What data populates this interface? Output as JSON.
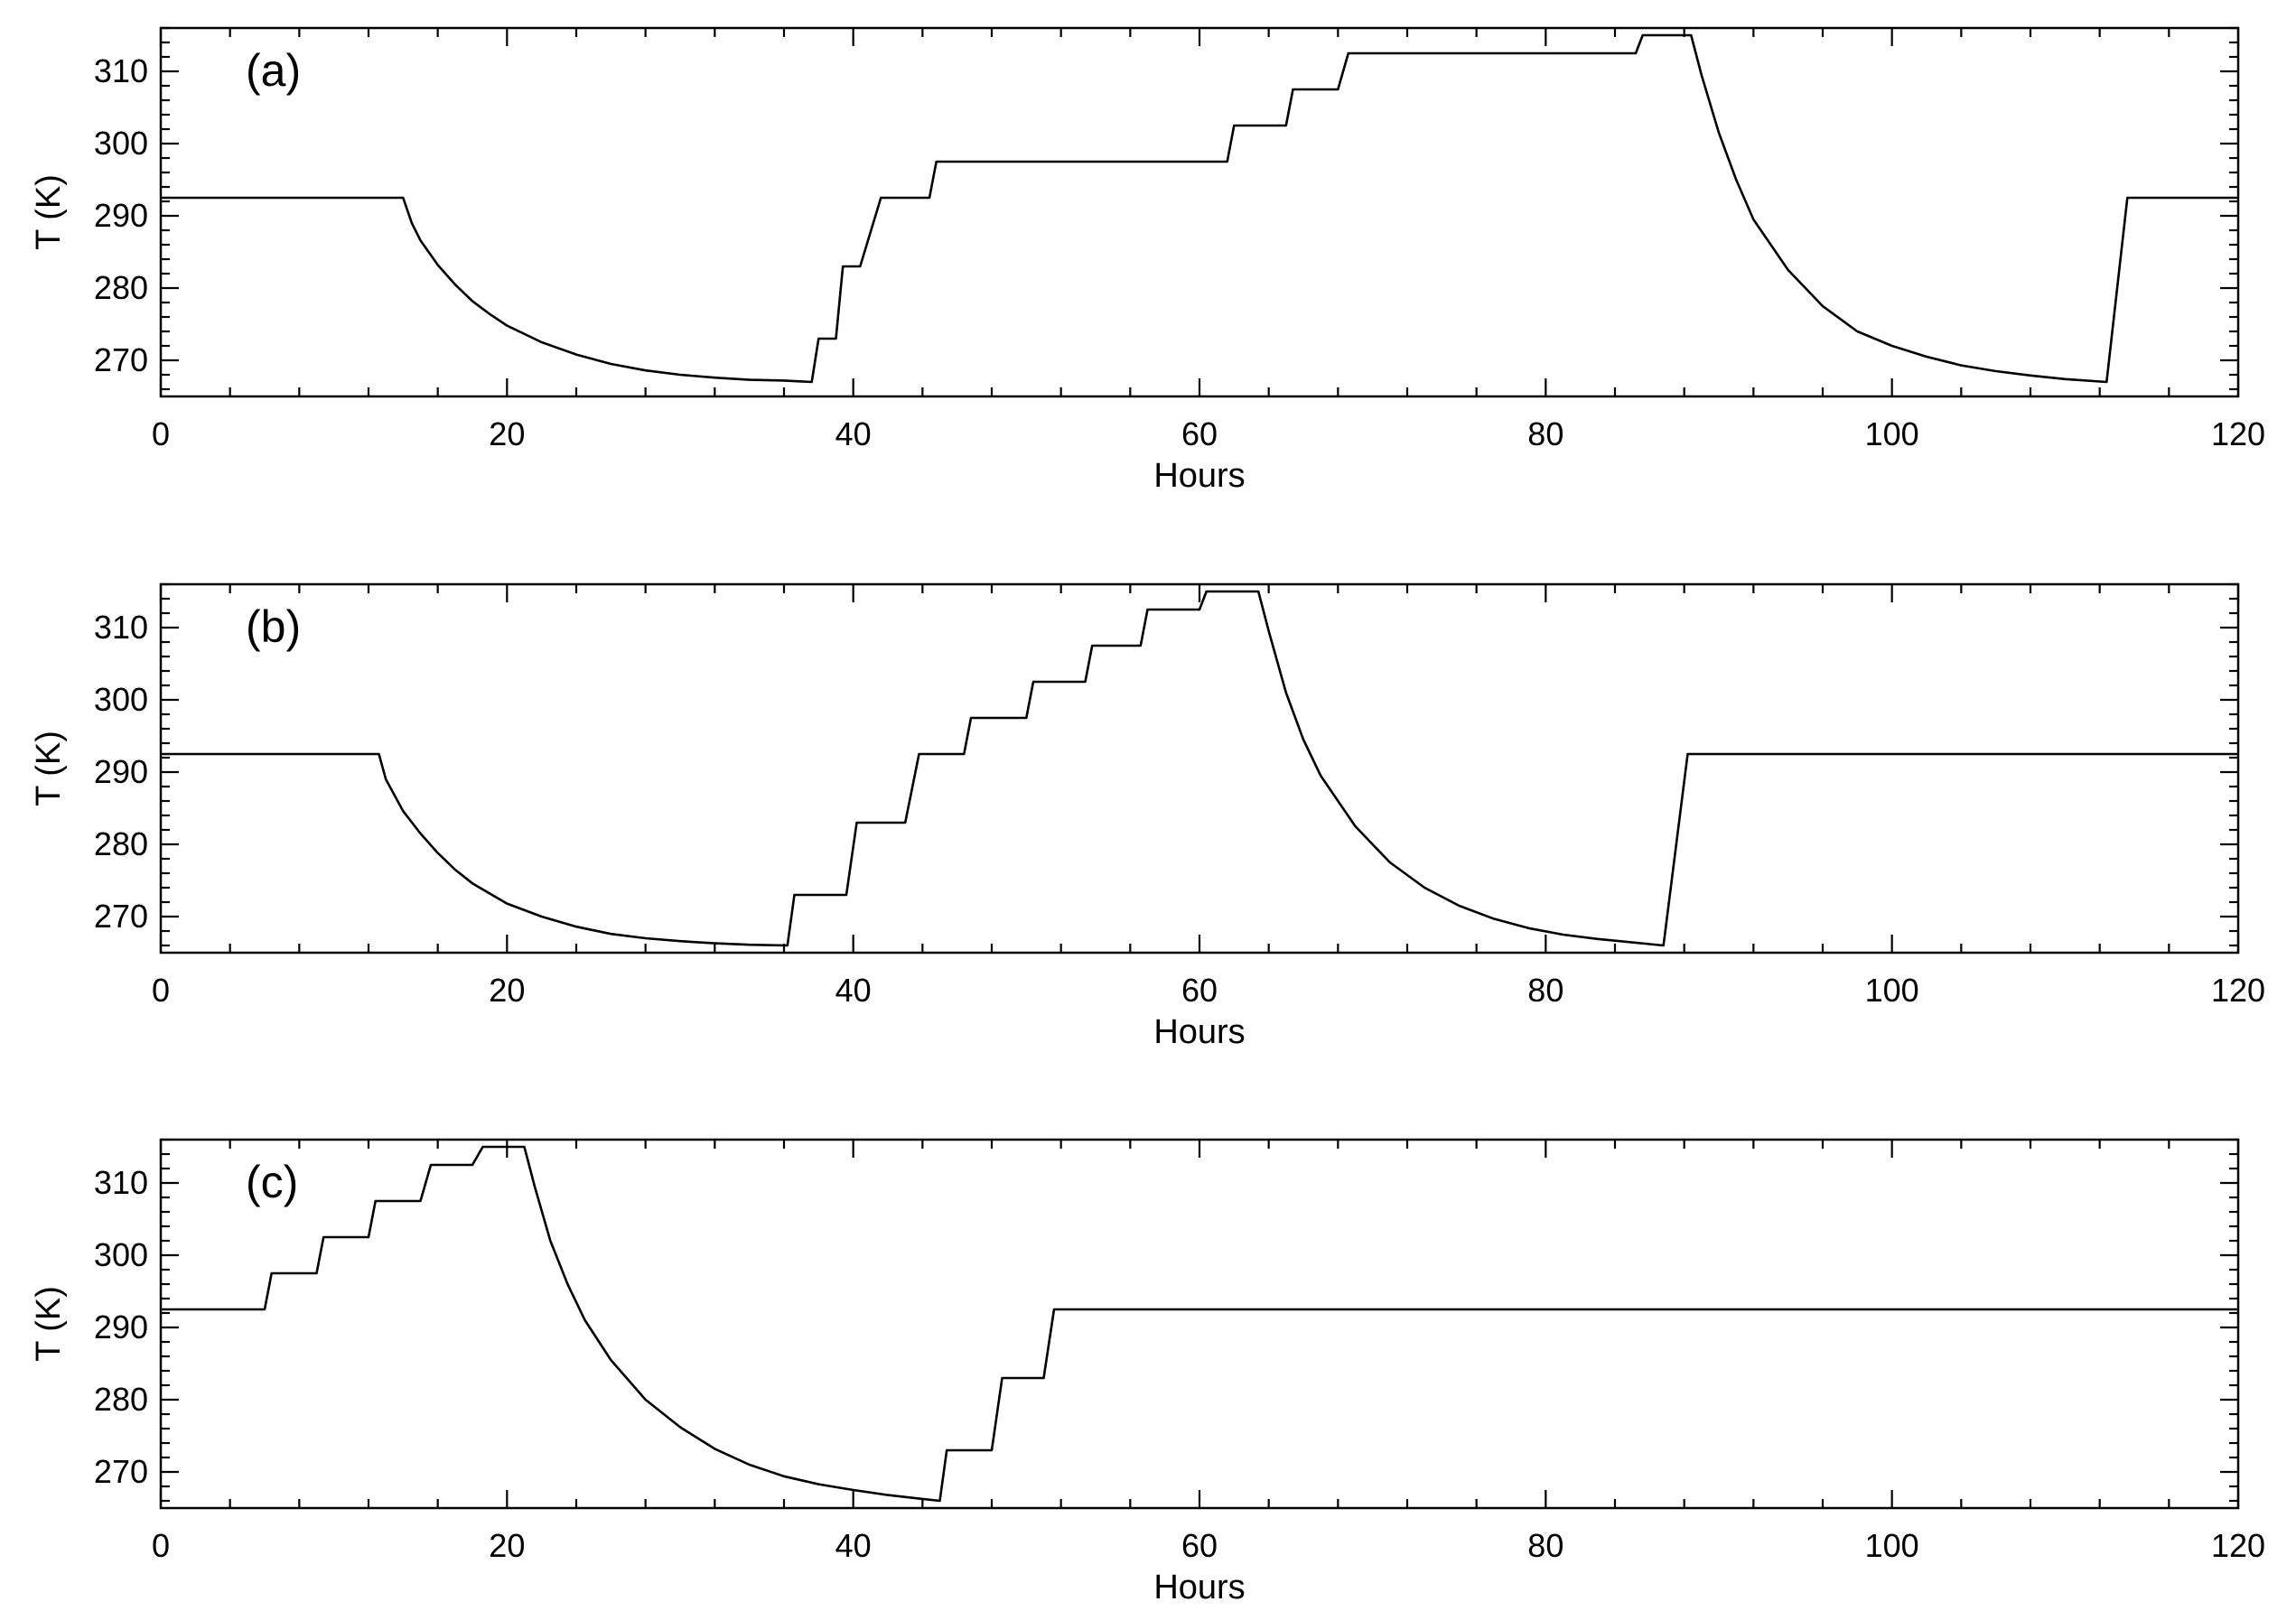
{
  "chart_data": [
    {
      "type": "line",
      "panel_label": "(a)",
      "xlabel": "Hours",
      "ylabel": "T (K)",
      "xlim": [
        0,
        120
      ],
      "ylim": [
        265,
        316
      ],
      "x_ticks": [
        0,
        20,
        40,
        60,
        80,
        100,
        120
      ],
      "y_ticks": [
        270,
        280,
        290,
        300,
        310
      ],
      "grid": false,
      "series": [
        {
          "points": [
            [
              0,
              292.5
            ],
            [
              14,
              292.5
            ],
            [
              14.5,
              289
            ],
            [
              15,
              286.6
            ],
            [
              16,
              283.2
            ],
            [
              17,
              280.5
            ],
            [
              18,
              278.2
            ],
            [
              19,
              276.4
            ],
            [
              20,
              274.8
            ],
            [
              22,
              272.5
            ],
            [
              24,
              270.8
            ],
            [
              26,
              269.5
            ],
            [
              28,
              268.6
            ],
            [
              30,
              268
            ],
            [
              32,
              267.6
            ],
            [
              34,
              267.3
            ],
            [
              36,
              267.2
            ],
            [
              37.6,
              267
            ],
            [
              38,
              273
            ],
            [
              39,
              273
            ],
            [
              39.4,
              283
            ],
            [
              40.4,
              283
            ],
            [
              41.6,
              292.5
            ],
            [
              44.4,
              292.5
            ],
            [
              44.8,
              297.5
            ],
            [
              61.6,
              297.5
            ],
            [
              62,
              302.5
            ],
            [
              65,
              302.5
            ],
            [
              65.4,
              307.5
            ],
            [
              68,
              307.5
            ],
            [
              68.6,
              312.5
            ],
            [
              85.2,
              312.5
            ],
            [
              85.6,
              315
            ],
            [
              88.4,
              315
            ],
            [
              89,
              309.5
            ],
            [
              90,
              301.5
            ],
            [
              91,
              295
            ],
            [
              92,
              289.5
            ],
            [
              94,
              282.5
            ],
            [
              96,
              277.5
            ],
            [
              98,
              274
            ],
            [
              100,
              272
            ],
            [
              102,
              270.5
            ],
            [
              104,
              269.3
            ],
            [
              106,
              268.5
            ],
            [
              108,
              267.9
            ],
            [
              110,
              267.4
            ],
            [
              112.4,
              267
            ],
            [
              113.6,
              292.5
            ],
            [
              120,
              292.5
            ]
          ]
        }
      ]
    },
    {
      "type": "line",
      "panel_label": "(b)",
      "xlabel": "Hours",
      "ylabel": "T (K)",
      "xlim": [
        0,
        120
      ],
      "ylim": [
        265,
        316
      ],
      "x_ticks": [
        0,
        20,
        40,
        60,
        80,
        100,
        120
      ],
      "y_ticks": [
        270,
        280,
        290,
        300,
        310
      ],
      "grid": false,
      "series": [
        {
          "points": [
            [
              0,
              292.5
            ],
            [
              12.6,
              292.5
            ],
            [
              13,
              289
            ],
            [
              14,
              284.6
            ],
            [
              15,
              281.5
            ],
            [
              16,
              278.8
            ],
            [
              17,
              276.5
            ],
            [
              18,
              274.6
            ],
            [
              20,
              271.8
            ],
            [
              22,
              270
            ],
            [
              24,
              268.6
            ],
            [
              26,
              267.6
            ],
            [
              28,
              267
            ],
            [
              30,
              266.6
            ],
            [
              32,
              266.3
            ],
            [
              34,
              266.1
            ],
            [
              36.2,
              266
            ],
            [
              36.6,
              273
            ],
            [
              39.6,
              273
            ],
            [
              40.2,
              283
            ],
            [
              43,
              283
            ],
            [
              43.8,
              292.5
            ],
            [
              46.4,
              292.5
            ],
            [
              46.8,
              297.5
            ],
            [
              50,
              297.5
            ],
            [
              50.4,
              302.5
            ],
            [
              53.4,
              302.5
            ],
            [
              53.8,
              307.5
            ],
            [
              56.6,
              307.5
            ],
            [
              57,
              312.5
            ],
            [
              60,
              312.5
            ],
            [
              60.4,
              315
            ],
            [
              63.4,
              315
            ],
            [
              64,
              309.5
            ],
            [
              65,
              301
            ],
            [
              66,
              294.5
            ],
            [
              67,
              289.5
            ],
            [
              69,
              282.5
            ],
            [
              71,
              277.5
            ],
            [
              73,
              274
            ],
            [
              75,
              271.5
            ],
            [
              77,
              269.7
            ],
            [
              79,
              268.4
            ],
            [
              81,
              267.5
            ],
            [
              83,
              266.9
            ],
            [
              86.8,
              266
            ],
            [
              88.2,
              292.5
            ],
            [
              120,
              292.5
            ]
          ]
        }
      ]
    },
    {
      "type": "line",
      "panel_label": "(c)",
      "xlabel": "Hours",
      "ylabel": "T (K)",
      "xlim": [
        0,
        120
      ],
      "ylim": [
        265,
        316
      ],
      "x_ticks": [
        0,
        20,
        40,
        60,
        80,
        100,
        120
      ],
      "y_ticks": [
        270,
        280,
        290,
        300,
        310
      ],
      "grid": false,
      "series": [
        {
          "points": [
            [
              0,
              292.5
            ],
            [
              6,
              292.5
            ],
            [
              6.4,
              297.5
            ],
            [
              9,
              297.5
            ],
            [
              9.4,
              302.5
            ],
            [
              12,
              302.5
            ],
            [
              12.4,
              307.5
            ],
            [
              15,
              307.5
            ],
            [
              15.6,
              312.5
            ],
            [
              18,
              312.5
            ],
            [
              18.6,
              315
            ],
            [
              21,
              315
            ],
            [
              21.6,
              309.5
            ],
            [
              22.5,
              302
            ],
            [
              23.5,
              296
            ],
            [
              24.5,
              291
            ],
            [
              26,
              285.5
            ],
            [
              28,
              280
            ],
            [
              30,
              276.2
            ],
            [
              32,
              273.2
            ],
            [
              34,
              271
            ],
            [
              36,
              269.4
            ],
            [
              38,
              268.3
            ],
            [
              40,
              267.5
            ],
            [
              42,
              266.8
            ],
            [
              45,
              266
            ],
            [
              45.4,
              273
            ],
            [
              48,
              273
            ],
            [
              48.6,
              283
            ],
            [
              51,
              283
            ],
            [
              51.6,
              292.5
            ],
            [
              120,
              292.5
            ]
          ]
        }
      ]
    }
  ]
}
